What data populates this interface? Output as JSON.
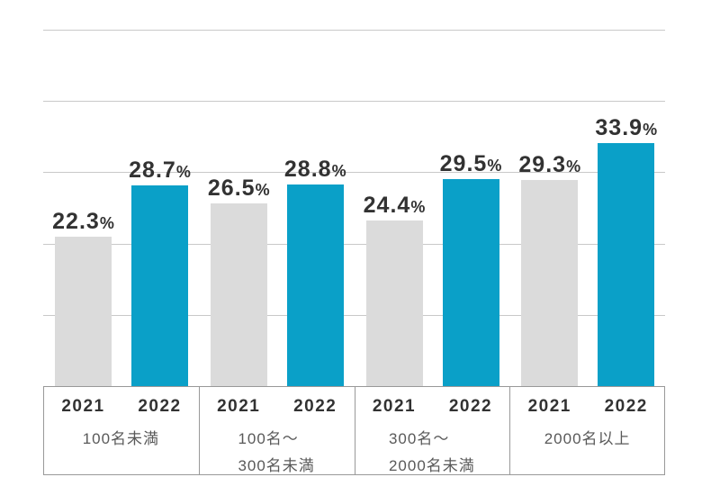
{
  "chart_data": {
    "type": "bar",
    "title": "",
    "unit": "%",
    "value_suffix": "%",
    "legend_position": "none",
    "grid": true,
    "categories": [
      {
        "lines": [
          "100名未満"
        ]
      },
      {
        "lines": [
          "100名～",
          "300名未満"
        ]
      },
      {
        "lines": [
          "300名～",
          "2000名未満"
        ]
      },
      {
        "lines": [
          "2000名以上"
        ]
      }
    ],
    "series": [
      {
        "name": "2021",
        "color": "#dbdbdb",
        "values": [
          22.3,
          26.5,
          24.4,
          29.3
        ]
      },
      {
        "name": "2022",
        "color": "#0aa0c8",
        "values": [
          28.7,
          28.8,
          29.5,
          33.9
        ]
      }
    ],
    "colors": {
      "gridline": "#c9c9c9",
      "axis_border": "#999999",
      "value_text": "#323232",
      "category_text": "#595959",
      "background": "#ffffff"
    }
  }
}
